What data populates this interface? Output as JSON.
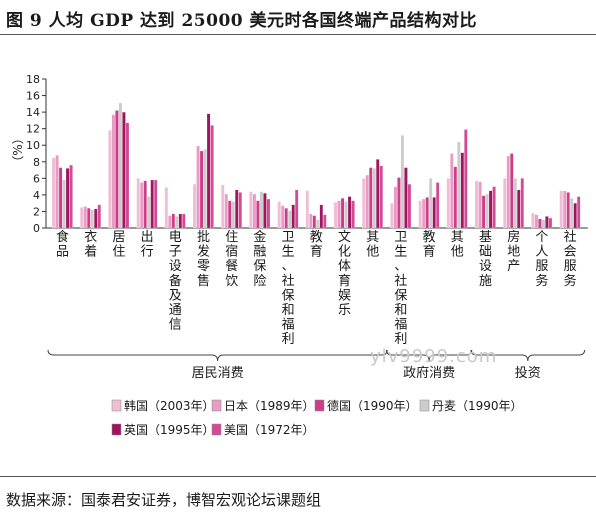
{
  "title": "图 9 人均 GDP 达到 25000 美元时各国终端产品结构对比",
  "source": "数据来源：国泰君安证券，博智宏观论坛课题组",
  "watermark": "ylv9999.com",
  "chart_data": {
    "type": "bar",
    "ylabel": "（%）",
    "ylim": [
      0,
      18
    ],
    "yticks": [
      0,
      2,
      4,
      6,
      8,
      10,
      12,
      14,
      16,
      18
    ],
    "categories": [
      "食品",
      "衣着",
      "居住",
      "出行",
      "电子设备及通信",
      "批发零售",
      "住宿餐饮",
      "金融保险",
      "卫生、社保和福利",
      "教育",
      "文化体育娱乐",
      "其他",
      "卫生、社保和福利",
      "教育",
      "其他",
      "基础设施",
      "房地产",
      "个人服务",
      "社会服务"
    ],
    "groups": [
      {
        "label": "居民消费",
        "from": 0,
        "to": 11
      },
      {
        "label": "政府消费",
        "from": 12,
        "to": 14
      },
      {
        "label": "投资",
        "from": 15,
        "to": 18
      }
    ],
    "series": [
      {
        "name": "韩国（2003年）",
        "color": "#f0bcd6",
        "values": [
          8.5,
          2.5,
          11.8,
          6.0,
          4.9,
          5.3,
          5.2,
          4.4,
          3.2,
          4.5,
          3.1,
          6.0,
          3.0,
          3.3,
          6.0,
          5.7,
          6.0,
          1.8,
          4.5
        ]
      },
      {
        "name": "日本（1989年）",
        "color": "#e79cc2",
        "values": [
          8.8,
          2.6,
          13.7,
          5.5,
          1.5,
          9.9,
          4.1,
          4.1,
          2.7,
          1.7,
          3.3,
          6.4,
          5.0,
          3.5,
          9.0,
          5.6,
          8.7,
          1.6,
          4.5
        ]
      },
      {
        "name": "德国（1990年）",
        "color": "#cd3d8a",
        "values": [
          7.3,
          2.4,
          14.2,
          5.7,
          1.7,
          9.3,
          3.3,
          3.3,
          2.4,
          1.5,
          3.6,
          7.3,
          6.1,
          3.7,
          7.4,
          3.9,
          9.0,
          1.1,
          4.3
        ]
      },
      {
        "name": "丹麦（1990年）",
        "color": "#cccccc",
        "values": [
          5.8,
          2.2,
          15.1,
          3.8,
          1.4,
          9.5,
          3.2,
          4.4,
          2.1,
          1.0,
          3.2,
          7.2,
          11.2,
          6.0,
          10.4,
          4.1,
          6.0,
          1.0,
          3.6
        ]
      },
      {
        "name": "英国（1995年）",
        "color": "#a01560",
        "values": [
          7.2,
          2.3,
          14.0,
          5.8,
          1.7,
          13.8,
          4.6,
          4.2,
          2.8,
          2.8,
          3.8,
          8.3,
          7.3,
          3.7,
          9.1,
          4.5,
          4.6,
          1.4,
          3.0
        ]
      },
      {
        "name": "美国（1972年）",
        "color": "#d24a95",
        "values": [
          7.6,
          2.8,
          12.7,
          5.8,
          1.7,
          12.4,
          4.3,
          3.5,
          4.6,
          1.6,
          3.3,
          7.5,
          5.3,
          5.5,
          11.9,
          5.0,
          6.0,
          1.2,
          3.8
        ]
      }
    ],
    "legend_position": "bottom",
    "grid": false
  }
}
